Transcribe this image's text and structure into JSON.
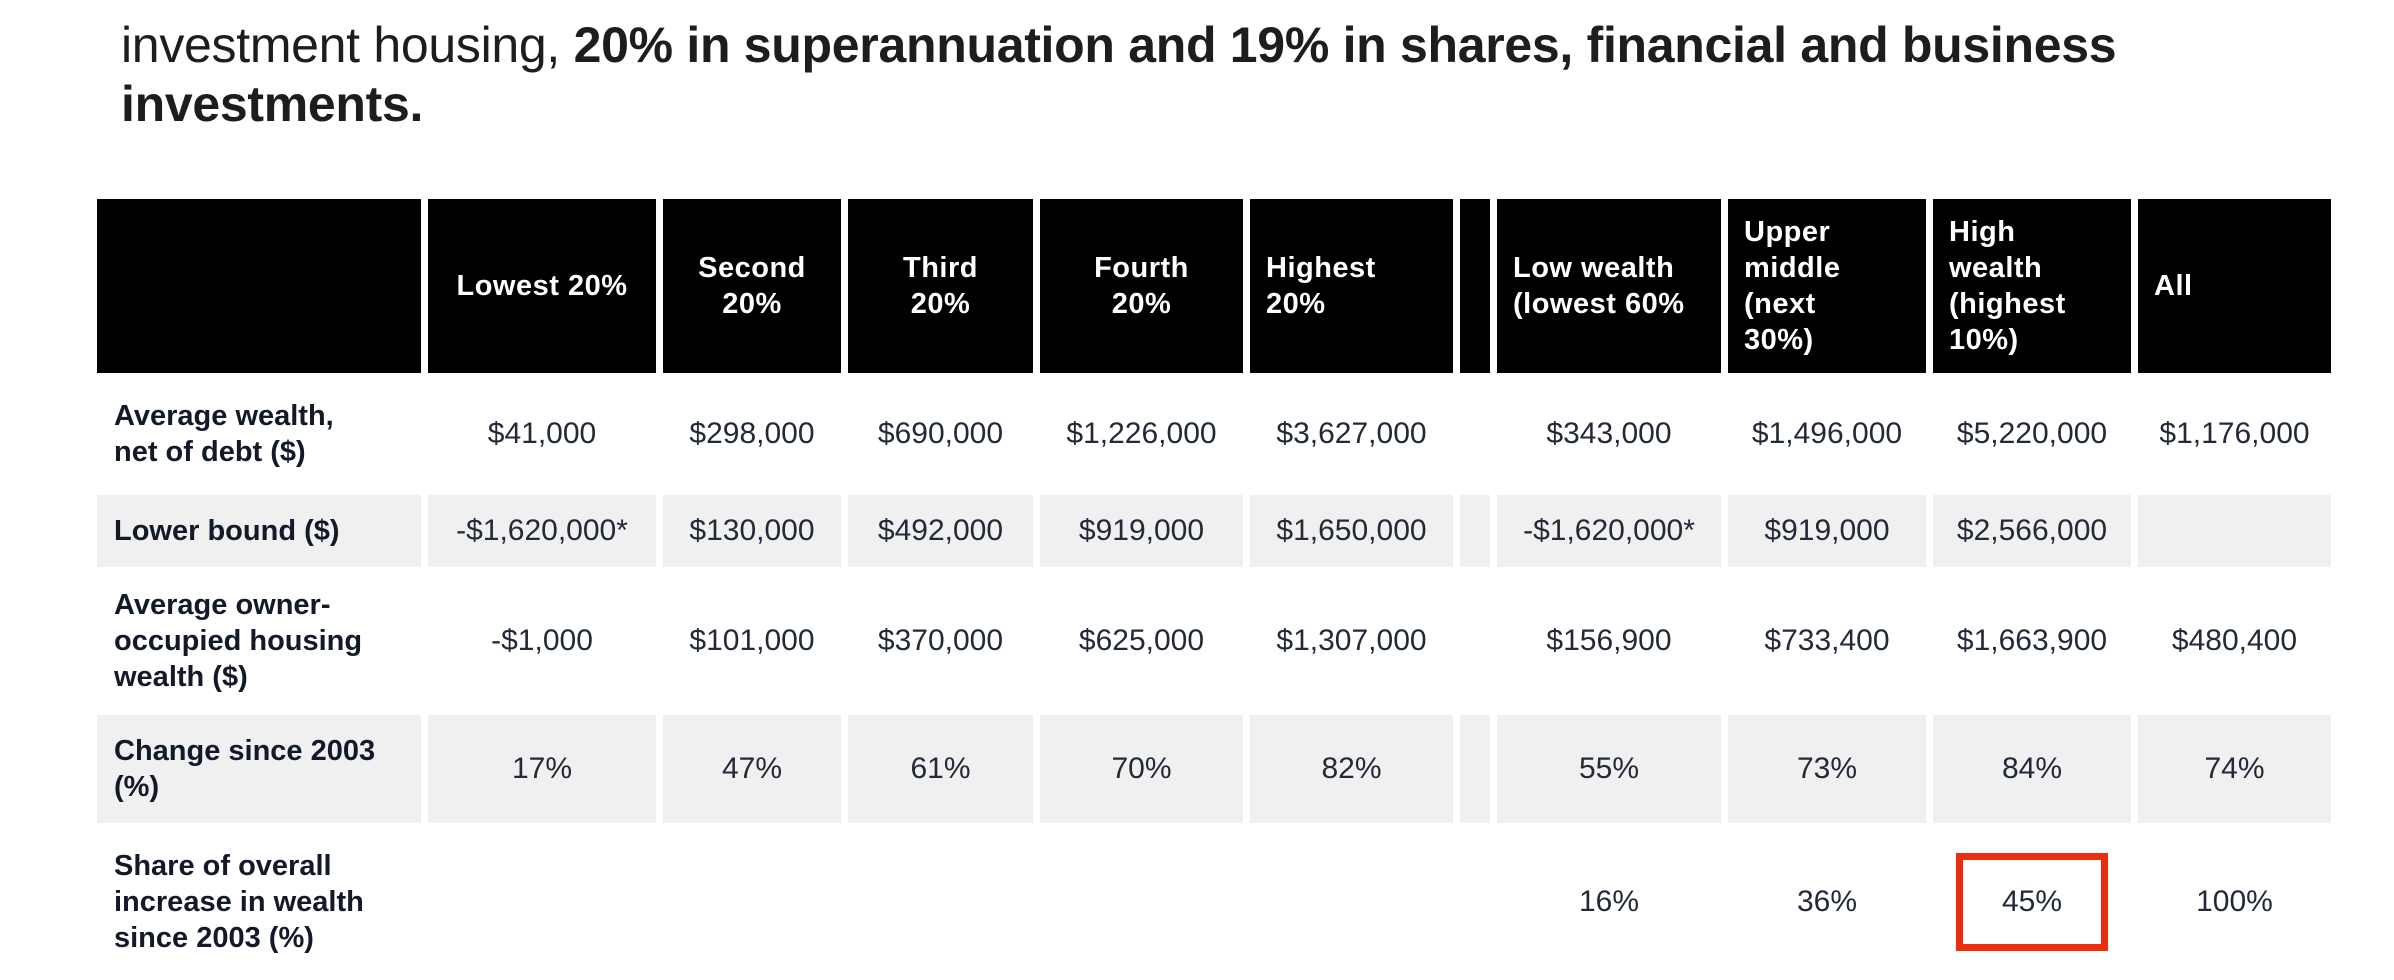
{
  "heading": {
    "text_regular": "investment housing, ",
    "text_bold": "20% in superannuation and 19% in shares, financial and business investments."
  },
  "table": {
    "columns": [
      {
        "id": "row-label",
        "label": ""
      },
      {
        "id": "lowest-20",
        "label": "Lowest 20%"
      },
      {
        "id": "second-20",
        "label": "Second 20%"
      },
      {
        "id": "third-20",
        "label": "Third 20%"
      },
      {
        "id": "fourth-20",
        "label": "Fourth 20%"
      },
      {
        "id": "highest-20",
        "label": "Highest 20%"
      },
      {
        "id": "separator",
        "label": ""
      },
      {
        "id": "low-wealth",
        "label": "Low wealth (lowest 60%"
      },
      {
        "id": "upper-middle",
        "label": "Upper middle (next 30%)"
      },
      {
        "id": "high-wealth",
        "label": "High wealth (highest 10%)"
      },
      {
        "id": "all",
        "label": "All"
      }
    ],
    "rows": [
      {
        "label": "Average wealth, net of debt ($)",
        "shaded": false,
        "values": [
          "$41,000",
          "$298,000",
          "$690,000",
          "$1,226,000",
          "$3,627,000",
          "",
          "$343,000",
          "$1,496,000",
          "$5,220,000",
          "$1,176,000"
        ]
      },
      {
        "label": "Lower bound ($)",
        "shaded": true,
        "values": [
          "-$1,620,000*",
          "$130,000",
          "$492,000",
          "$919,000",
          "$1,650,000",
          "",
          "-$1,620,000*",
          "$919,000",
          "$2,566,000",
          ""
        ]
      },
      {
        "label": "Average owner-occupied housing wealth ($)",
        "shaded": false,
        "values": [
          "-$1,000",
          "$101,000",
          "$370,000",
          "$625,000",
          "$1,307,000",
          "",
          "$156,900",
          "$733,400",
          "$1,663,900",
          "$480,400"
        ]
      },
      {
        "label": "Change since 2003 (%)",
        "shaded": true,
        "values": [
          "17%",
          "47%",
          "61%",
          "70%",
          "82%",
          "",
          "55%",
          "73%",
          "84%",
          "74%"
        ]
      },
      {
        "label": "Share of overall increase in wealth since 2003 (%)",
        "shaded": false,
        "values": [
          "",
          "",
          "",
          "",
          "",
          "",
          "16%",
          "36%",
          "45%",
          "100%"
        ]
      }
    ],
    "highlight": {
      "row_index": 4,
      "value_index": 8,
      "value": "45%",
      "color": "#ee2c0e"
    }
  },
  "colors": {
    "header_bg": "#000000",
    "header_text": "#ffffff",
    "shaded_row_bg": "#f0f0f0",
    "row_label_text": "#121a2a",
    "value_text": "#222a38",
    "heading_text": "#1d1d1d",
    "highlight_border": "#ee2c0e"
  }
}
